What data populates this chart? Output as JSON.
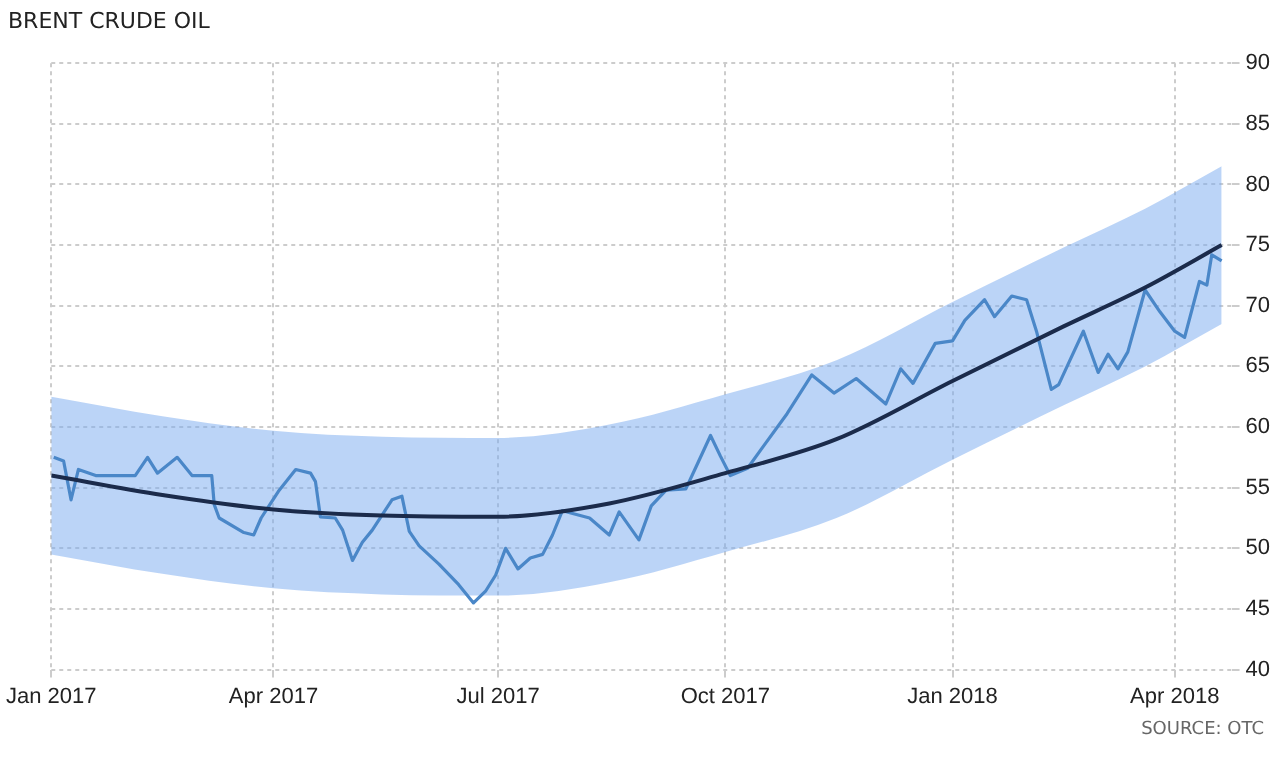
{
  "chart_data": {
    "type": "line",
    "title": "BRENT CRUDE OIL",
    "annotations": [
      "SOURCE: OTC"
    ],
    "xlim": [
      "2017-01-01",
      "2018-04-24"
    ],
    "xticks": [
      {
        "value": "2017-01-01",
        "label": "Jan 2017"
      },
      {
        "value": "2017-04-01",
        "label": "Apr 2017"
      },
      {
        "value": "2017-07-01",
        "label": "Jul 2017"
      },
      {
        "value": "2017-10-01",
        "label": "Oct 2017"
      },
      {
        "value": "2018-01-01",
        "label": "Jan 2018"
      },
      {
        "value": "2018-04-01",
        "label": "Apr 2018"
      }
    ],
    "ylim": [
      40,
      90
    ],
    "yticks": [
      40,
      45,
      50,
      55,
      60,
      65,
      70,
      75,
      80,
      85,
      90
    ],
    "grid": true,
    "series": [
      {
        "type": "line",
        "color": "#1b2b4b",
        "x": [
          "2017-01-01",
          "2017-02-15",
          "2017-04-01",
          "2017-05-15",
          "2017-07-01",
          "2017-08-15",
          "2017-10-01",
          "2017-11-15",
          "2018-01-01",
          "2018-02-15",
          "2018-03-20",
          "2018-04-20"
        ],
        "values": [
          56,
          54.4,
          53.2,
          52.7,
          52.6,
          53.7,
          56.2,
          59,
          63.8,
          68.3,
          71.5,
          75
        ],
        "lower": [
          49.5,
          47.9,
          46.7,
          46.2,
          46.1,
          47.2,
          49.7,
          52.5,
          57.3,
          61.8,
          65,
          68.5
        ],
        "upper": [
          62.5,
          60.9,
          59.7,
          59.2,
          59.1,
          60.2,
          62.7,
          65.5,
          70.3,
          74.8,
          78,
          81.5
        ]
      },
      {
        "type": "line",
        "color": "#4a87c8",
        "x": [
          "2017-01-02",
          "2017-01-06",
          "2017-01-09",
          "2017-01-12",
          "2017-01-19",
          "2017-02-04",
          "2017-02-09",
          "2017-02-13",
          "2017-02-21",
          "2017-02-27",
          "2017-03-07",
          "2017-03-08",
          "2017-03-10",
          "2017-03-20",
          "2017-03-24",
          "2017-03-27",
          "2017-04-03",
          "2017-04-10",
          "2017-04-16",
          "2017-04-18",
          "2017-04-20",
          "2017-04-26",
          "2017-04-29",
          "2017-05-03",
          "2017-05-07",
          "2017-05-11",
          "2017-05-19",
          "2017-05-23",
          "2017-05-26",
          "2017-05-30",
          "2017-06-07",
          "2017-06-15",
          "2017-06-21",
          "2017-06-26",
          "2017-06-30",
          "2017-07-04",
          "2017-07-09",
          "2017-07-14",
          "2017-07-19",
          "2017-07-23",
          "2017-07-27",
          "2017-08-07",
          "2017-08-15",
          "2017-08-19",
          "2017-08-27",
          "2017-09-01",
          "2017-09-07",
          "2017-09-15",
          "2017-09-20",
          "2017-09-25",
          "2017-09-29",
          "2017-10-03",
          "2017-10-10",
          "2017-10-16",
          "2017-10-26",
          "2017-11-05",
          "2017-11-14",
          "2017-11-23",
          "2017-12-05",
          "2017-12-11",
          "2017-12-16",
          "2017-12-25",
          "2018-01-01",
          "2018-01-06",
          "2018-01-14",
          "2018-01-18",
          "2018-01-25",
          "2018-01-31",
          "2018-02-04",
          "2018-02-10",
          "2018-02-13",
          "2018-02-18",
          "2018-02-23",
          "2018-03-01",
          "2018-03-05",
          "2018-03-09",
          "2018-03-13",
          "2018-03-20",
          "2018-03-26",
          "2018-04-01",
          "2018-04-05",
          "2018-04-11",
          "2018-04-14",
          "2018-04-16",
          "2018-04-20"
        ],
        "values": [
          57.5,
          57.2,
          54,
          56.5,
          56,
          56,
          57.5,
          56.2,
          57.5,
          56,
          56,
          53.6,
          52.5,
          51.3,
          51.1,
          52.5,
          54.7,
          56.5,
          56.2,
          55.5,
          52.6,
          52.5,
          51.5,
          49,
          50.5,
          51.5,
          54,
          54.3,
          51.4,
          50.2,
          48.7,
          47,
          45.5,
          46.5,
          47.8,
          50,
          48.3,
          49.2,
          49.5,
          51.1,
          53.1,
          52.5,
          51.1,
          53,
          50.7,
          53.5,
          54.8,
          54.9,
          57.1,
          59.3,
          57.6,
          56,
          56.6,
          58.3,
          61.1,
          64.3,
          62.8,
          64,
          61.9,
          64.8,
          63.6,
          66.9,
          67.1,
          68.8,
          70.5,
          69.1,
          70.8,
          70.5,
          67.9,
          63.1,
          63.5,
          65.7,
          67.9,
          64.5,
          66,
          64.8,
          66.2,
          71.3,
          69.5,
          67.9,
          67.4,
          72,
          71.7,
          74.2,
          73.7
        ]
      }
    ]
  }
}
